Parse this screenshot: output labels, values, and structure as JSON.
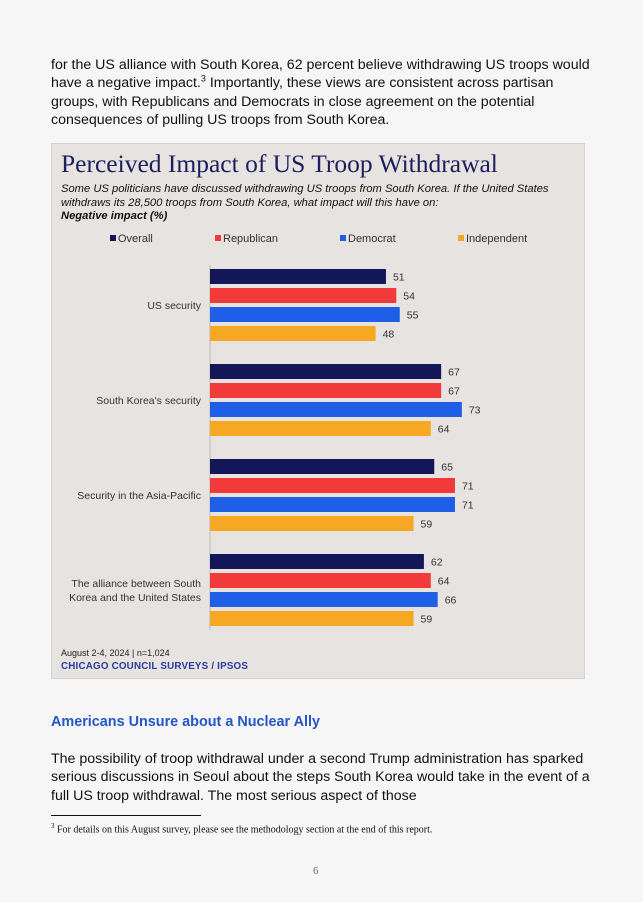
{
  "intro": {
    "text": "for the US alliance with South Korea, 62 percent believe withdrawing US troops would have a negative impact.",
    "footnote_ref": "3",
    "text_after": " Importantly, these views are consistent across partisan groups, with Republicans and Democrats in close agreement on the potential consequences of pulling US troops from South Korea."
  },
  "chart_data": {
    "type": "bar",
    "orientation": "horizontal",
    "title": "Perceived Impact of US Troop Withdrawal",
    "subtitle": "Some US politicians have discussed withdrawing US troops from South Korea. If the United States withdraws its 28,500 troops from South Korea, what impact will this have on:",
    "measure": "Negative impact (%)",
    "categories": [
      "US security",
      "South Korea's security",
      "Security in the Asia-Pacific",
      "The alliance between South Korea and the United States"
    ],
    "series": [
      {
        "name": "Overall",
        "color": "#14165a",
        "values": [
          51,
          67,
          65,
          62
        ]
      },
      {
        "name": "Republican",
        "color": "#f23a3a",
        "values": [
          54,
          67,
          71,
          64
        ]
      },
      {
        "name": "Democrat",
        "color": "#1f5ee6",
        "values": [
          55,
          73,
          71,
          66
        ]
      },
      {
        "name": "Independent",
        "color": "#f7a823",
        "values": [
          48,
          64,
          59,
          59
        ]
      }
    ],
    "xlim": [
      0,
      100
    ],
    "legend_position": "top",
    "source": "August 2-4, 2024 | n=1,024",
    "brand": "CHICAGO COUNCIL SURVEYS / IPSOS"
  },
  "section": {
    "heading": "Americans Unsure about a Nuclear Ally",
    "body": "The possibility of troop withdrawal under a second Trump administration has sparked serious discussions in Seoul about the steps South Korea would take in the event of a full US troop withdrawal. The most serious aspect of those"
  },
  "footnote": {
    "number": "3",
    "text": " For details on this August survey, please see the methodology section at the end of this report."
  },
  "page_number": "6"
}
